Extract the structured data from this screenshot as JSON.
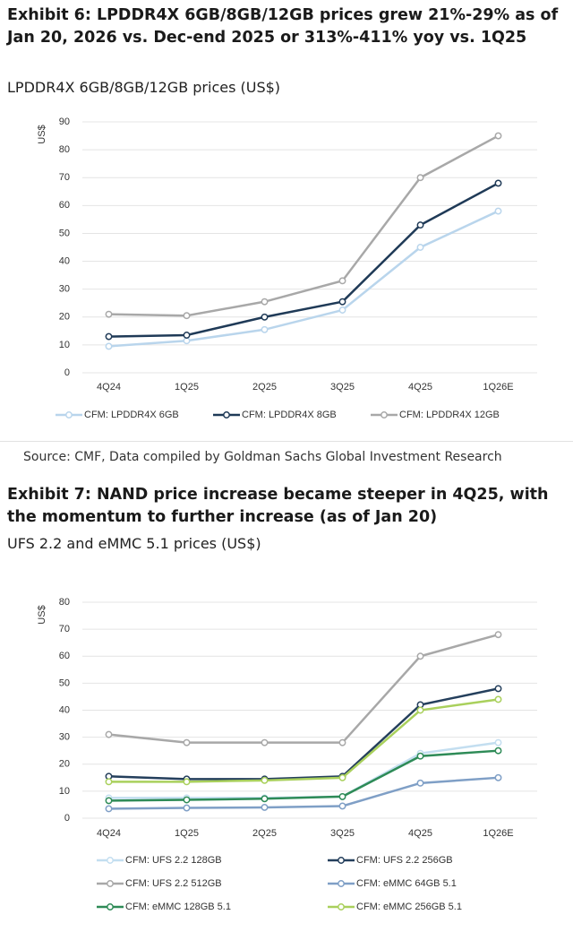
{
  "chart_data": [
    {
      "type": "line",
      "title": "Exhibit 6: LPDDR4X 6GB/8GB/12GB prices grew 21%-29% as of Jan 20, 2026 vs. Dec-end 2025 or 313%-411% yoy vs. 1Q25",
      "subtitle": "LPDDR4X 6GB/8GB/12GB prices (US$)",
      "y_label": "US$",
      "categories": [
        "4Q24",
        "1Q25",
        "2Q25",
        "3Q25",
        "4Q25",
        "1Q26E"
      ],
      "series": [
        {
          "name": "CFM: LPDDR4X 6GB",
          "color": "#b9d5ec",
          "values": [
            9.5,
            11.5,
            15.5,
            22.5,
            45,
            58
          ]
        },
        {
          "name": "CFM: LPDDR4X 8GB",
          "color": "#1f3a57",
          "values": [
            13,
            13.5,
            20,
            25.5,
            53,
            68
          ]
        },
        {
          "name": "CFM: LPDDR4X 12GB",
          "color": "#a8a8a8",
          "values": [
            21,
            20.5,
            25.5,
            33,
            70,
            85
          ]
        }
      ],
      "ylim": [
        0,
        90
      ],
      "yticks": [
        0,
        10,
        20,
        30,
        40,
        50,
        60,
        70,
        80,
        90
      ],
      "grid": true,
      "source": "Source: CMF, Data compiled by Goldman Sachs Global Investment Research"
    },
    {
      "type": "line",
      "title": "Exhibit 7: NAND price increase became steeper in 4Q25, with the momentum to further increase (as of Jan 20)",
      "subtitle": "UFS 2.2 and eMMC 5.1 prices (US$)",
      "y_label": "US$",
      "categories": [
        "4Q24",
        "1Q25",
        "2Q25",
        "3Q25",
        "4Q25",
        "1Q26E"
      ],
      "series": [
        {
          "name": "CFM: UFS 2.2 128GB",
          "color": "#c3def0",
          "values": [
            7.5,
            7.5,
            7.5,
            8,
            24,
            28
          ]
        },
        {
          "name": "CFM: UFS 2.2 256GB",
          "color": "#243f5c",
          "values": [
            15.5,
            14.5,
            14.5,
            15.5,
            42,
            48
          ]
        },
        {
          "name": "CFM: UFS 2.2 512GB",
          "color": "#a8a8a8",
          "values": [
            31,
            28,
            28,
            28,
            60,
            68
          ]
        },
        {
          "name": "CFM: eMMC 64GB 5.1",
          "color": "#7f9fc6",
          "values": [
            3.5,
            3.8,
            4,
            4.5,
            13,
            15
          ]
        },
        {
          "name": "CFM: eMMC 128GB 5.1",
          "color": "#2e8b57",
          "values": [
            6.5,
            6.8,
            7.2,
            8,
            23,
            25
          ]
        },
        {
          "name": "CFM: eMMC 256GB 5.1",
          "color": "#a9d05c",
          "values": [
            13.5,
            13.5,
            14,
            15,
            40,
            44
          ]
        }
      ],
      "ylim": [
        0,
        80
      ],
      "yticks": [
        0,
        10,
        20,
        30,
        40,
        50,
        60,
        70,
        80
      ],
      "grid": true
    }
  ]
}
